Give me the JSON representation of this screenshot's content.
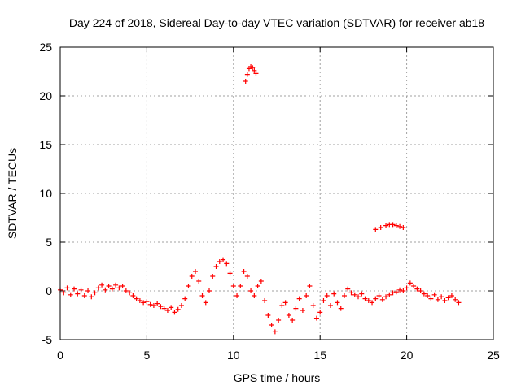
{
  "chart_data": {
    "type": "scatter",
    "title": "Day 224 of 2018, Sidereal Day-to-day VTEC variation (SDTVAR) for receiver ab18",
    "xlabel": "GPS time / hours",
    "ylabel": "SDTVAR / TECUs",
    "xlim": [
      0,
      25
    ],
    "ylim": [
      -5,
      25
    ],
    "xticks": [
      0,
      5,
      10,
      15,
      20,
      25
    ],
    "yticks": [
      -5,
      0,
      5,
      10,
      15,
      20,
      25
    ],
    "grid": true,
    "marker": "+",
    "color": "#ff0000",
    "series": [
      {
        "name": "SDTVAR",
        "points": [
          [
            0.0,
            0.1
          ],
          [
            0.2,
            -0.2
          ],
          [
            0.4,
            0.3
          ],
          [
            0.6,
            -0.4
          ],
          [
            0.8,
            0.2
          ],
          [
            1.0,
            -0.3
          ],
          [
            1.2,
            0.1
          ],
          [
            1.4,
            -0.5
          ],
          [
            1.6,
            0.0
          ],
          [
            1.8,
            -0.6
          ],
          [
            2.0,
            -0.2
          ],
          [
            2.2,
            0.3
          ],
          [
            2.4,
            0.6
          ],
          [
            2.6,
            0.1
          ],
          [
            2.8,
            0.5
          ],
          [
            3.0,
            0.2
          ],
          [
            3.2,
            0.6
          ],
          [
            3.4,
            0.3
          ],
          [
            3.6,
            0.5
          ],
          [
            3.8,
            0.0
          ],
          [
            4.0,
            -0.2
          ],
          [
            4.2,
            -0.5
          ],
          [
            4.4,
            -0.8
          ],
          [
            4.6,
            -1.0
          ],
          [
            4.8,
            -1.2
          ],
          [
            5.0,
            -1.1
          ],
          [
            5.2,
            -1.4
          ],
          [
            5.4,
            -1.5
          ],
          [
            5.6,
            -1.3
          ],
          [
            5.8,
            -1.6
          ],
          [
            6.0,
            -1.8
          ],
          [
            6.2,
            -2.0
          ],
          [
            6.4,
            -1.7
          ],
          [
            6.6,
            -2.2
          ],
          [
            6.8,
            -1.9
          ],
          [
            7.0,
            -1.5
          ],
          [
            7.2,
            -0.8
          ],
          [
            7.4,
            0.5
          ],
          [
            7.6,
            1.5
          ],
          [
            7.8,
            2.0
          ],
          [
            8.0,
            1.0
          ],
          [
            8.2,
            -0.5
          ],
          [
            8.4,
            -1.2
          ],
          [
            8.6,
            0.0
          ],
          [
            8.8,
            1.5
          ],
          [
            9.0,
            2.5
          ],
          [
            9.2,
            3.0
          ],
          [
            9.4,
            3.2
          ],
          [
            9.6,
            2.8
          ],
          [
            9.8,
            1.8
          ],
          [
            10.0,
            0.5
          ],
          [
            10.2,
            -0.5
          ],
          [
            10.4,
            0.5
          ],
          [
            10.6,
            2.0
          ],
          [
            10.8,
            1.5
          ],
          [
            11.0,
            0.0
          ],
          [
            11.2,
            -0.5
          ],
          [
            11.4,
            0.5
          ],
          [
            11.6,
            1.0
          ],
          [
            11.8,
            -1.0
          ],
          [
            12.0,
            -2.5
          ],
          [
            12.2,
            -3.5
          ],
          [
            12.4,
            -4.2
          ],
          [
            12.6,
            -3.0
          ],
          [
            12.8,
            -1.5
          ],
          [
            13.0,
            -1.2
          ],
          [
            13.2,
            -2.5
          ],
          [
            13.4,
            -3.0
          ],
          [
            13.6,
            -1.8
          ],
          [
            13.8,
            -0.8
          ],
          [
            14.0,
            -2.0
          ],
          [
            14.2,
            -0.5
          ],
          [
            14.4,
            0.5
          ],
          [
            14.6,
            -1.5
          ],
          [
            14.8,
            -2.8
          ],
          [
            15.0,
            -2.2
          ],
          [
            15.2,
            -1.0
          ],
          [
            15.4,
            -0.5
          ],
          [
            15.6,
            -1.5
          ],
          [
            15.8,
            -0.3
          ],
          [
            16.0,
            -1.2
          ],
          [
            16.2,
            -1.8
          ],
          [
            16.4,
            -0.5
          ],
          [
            16.6,
            0.2
          ],
          [
            16.8,
            -0.2
          ],
          [
            17.0,
            -0.4
          ],
          [
            17.2,
            -0.6
          ],
          [
            17.4,
            -0.3
          ],
          [
            17.6,
            -0.8
          ],
          [
            17.8,
            -1.0
          ],
          [
            18.0,
            -1.2
          ],
          [
            18.2,
            -0.8
          ],
          [
            18.4,
            -0.5
          ],
          [
            18.6,
            -0.9
          ],
          [
            18.8,
            -0.6
          ],
          [
            19.0,
            -0.4
          ],
          [
            19.2,
            -0.2
          ],
          [
            19.4,
            -0.1
          ],
          [
            19.6,
            0.1
          ],
          [
            19.8,
            0.0
          ],
          [
            20.0,
            0.3
          ],
          [
            20.2,
            0.8
          ],
          [
            20.4,
            0.5
          ],
          [
            20.6,
            0.2
          ],
          [
            20.8,
            0.0
          ],
          [
            21.0,
            -0.3
          ],
          [
            21.2,
            -0.5
          ],
          [
            21.4,
            -0.8
          ],
          [
            21.6,
            -0.4
          ],
          [
            21.8,
            -0.9
          ],
          [
            22.0,
            -0.6
          ],
          [
            22.2,
            -1.0
          ],
          [
            22.4,
            -0.7
          ],
          [
            22.6,
            -0.5
          ],
          [
            22.8,
            -0.9
          ],
          [
            23.0,
            -1.2
          ],
          [
            10.7,
            21.5
          ],
          [
            10.8,
            22.2
          ],
          [
            10.9,
            22.8
          ],
          [
            11.0,
            23.0
          ],
          [
            11.1,
            22.9
          ],
          [
            11.2,
            22.6
          ],
          [
            11.3,
            22.3
          ],
          [
            18.2,
            6.3
          ],
          [
            18.5,
            6.5
          ],
          [
            18.8,
            6.7
          ],
          [
            19.0,
            6.8
          ],
          [
            19.2,
            6.8
          ],
          [
            19.4,
            6.7
          ],
          [
            19.6,
            6.6
          ],
          [
            19.8,
            6.5
          ]
        ]
      }
    ]
  }
}
